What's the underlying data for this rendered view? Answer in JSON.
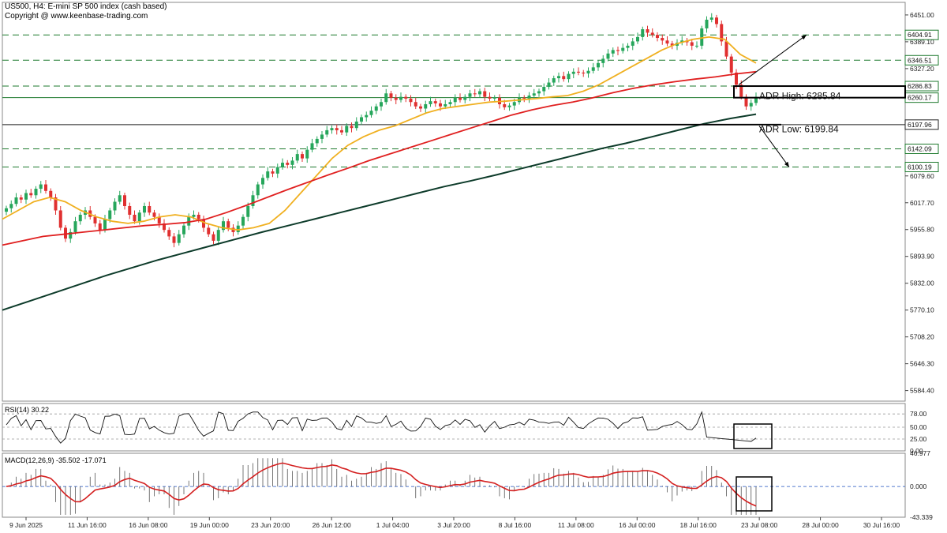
{
  "header": {
    "title": "US500, H4:  E-mini SP 500 index (cash based)",
    "copyright": "Copyright @ www.keenbase-trading.com"
  },
  "indicators": {
    "rsi_label": "RSI(14) 30.22",
    "macd_label": "MACD(12,26,9) -35.502 -17.071"
  },
  "chart_data": {
    "type": "line",
    "price_axis": {
      "ticks": [
        "6451.00",
        "6389.10",
        "6327.20",
        "6265.30",
        "6203.40",
        "6141.50",
        "6079.60",
        "6017.70",
        "5955.80",
        "5893.90",
        "5832.00",
        "5770.10",
        "5708.20",
        "5646.30",
        "5584.40"
      ],
      "range": [
        5560,
        6480
      ]
    },
    "x_labels": [
      "9 Jun 2025",
      "11 Jun 16:00",
      "16 Jun 08:00",
      "19 Jun 00:00",
      "23 Jun 20:00",
      "26 Jun 12:00",
      "1 Jul 04:00",
      "3 Jul 20:00",
      "8 Jul 16:00",
      "11 Jul 08:00",
      "16 Jul 00:00",
      "18 Jul 16:00",
      "23 Jul 08:00",
      "28 Jul 00:00",
      "30 Jul 16:00"
    ],
    "levels": [
      {
        "value": 6404.91,
        "label": "6404.91",
        "style": "dashed-green"
      },
      {
        "value": 6346.51,
        "label": "6346.51",
        "style": "dashed-green"
      },
      {
        "value": 6286.83,
        "label": "6286.83",
        "style": "dashed-green"
      },
      {
        "value": 6260.17,
        "label": "6260.17",
        "style": "solid-green"
      },
      {
        "value": 6197.96,
        "label": "6197.96",
        "style": "solid-black"
      },
      {
        "value": 6142.09,
        "label": "6142.09",
        "style": "dashed-green"
      },
      {
        "value": 6100.19,
        "label": "6100.19",
        "style": "dashed-green"
      }
    ],
    "annotations": {
      "adr_high": "ADR High: 6285.84",
      "adr_low": "ADR Low: 6199.84"
    },
    "series": [
      {
        "kind": "candles",
        "color_up": "#26a65b",
        "color_down": "#e03030",
        "close": [
          6005,
          6015,
          6030,
          6025,
          6040,
          6035,
          6050,
          6060,
          6045,
          6030,
          6000,
          5960,
          5935,
          5950,
          5975,
          5990,
          6000,
          5985,
          5970,
          5955,
          5980,
          6000,
          6020,
          6035,
          6010,
          5990,
          5975,
          5995,
          6010,
          5995,
          5985,
          5970,
          5955,
          5940,
          5925,
          5945,
          5965,
          5985,
          5990,
          5980,
          5960,
          5945,
          5930,
          5955,
          5975,
          5960,
          5950,
          5965,
          5985,
          6010,
          6035,
          6060,
          6075,
          6090,
          6085,
          6100,
          6110,
          6105,
          6115,
          6130,
          6120,
          6140,
          6155,
          6165,
          6175,
          6185,
          6190,
          6185,
          6180,
          6195,
          6190,
          6205,
          6215,
          6220,
          6230,
          6240,
          6250,
          6270,
          6260,
          6255,
          6262,
          6258,
          6250,
          6240,
          6235,
          6245,
          6252,
          6247,
          6240,
          6245,
          6250,
          6260,
          6255,
          6262,
          6270,
          6268,
          6275,
          6262,
          6258,
          6260,
          6245,
          6238,
          6242,
          6250,
          6260,
          6258,
          6265,
          6270,
          6275,
          6285,
          6295,
          6305,
          6310,
          6303,
          6315,
          6320,
          6318,
          6316,
          6322,
          6330,
          6340,
          6350,
          6362,
          6370,
          6368,
          6375,
          6380,
          6390,
          6400,
          6418,
          6410,
          6405,
          6398,
          6392,
          6385,
          6380,
          6387,
          6392,
          6388,
          6380,
          6380,
          6420,
          6440,
          6445,
          6430,
          6390,
          6355,
          6318,
          6290,
          6262,
          6240,
          6248,
          6262
        ]
      },
      {
        "kind": "ma",
        "name": "",
        "color": "#f0b020",
        "values": [
          5980,
          6000,
          6020,
          6030,
          6020,
          6000,
          5985,
          5975,
          5970,
          5975,
          5985,
          5990,
          5985,
          5970,
          5960,
          5955,
          5960,
          5970,
          6000,
          6040,
          6080,
          6120,
          6150,
          6170,
          6185,
          6195,
          6210,
          6225,
          6235,
          6240,
          6245,
          6250,
          6252,
          6255,
          6258,
          6262,
          6265,
          6275,
          6290,
          6310,
          6330,
          6350,
          6370,
          6385,
          6395,
          6400,
          6395,
          6360,
          6340
        ]
      },
      {
        "kind": "ma",
        "name": "",
        "color": "#e02020",
        "values": [
          5920,
          5930,
          5940,
          5945,
          5950,
          5955,
          5960,
          5965,
          5968,
          5972,
          5980,
          5995,
          6012,
          6030,
          6048,
          6065,
          6082,
          6098,
          6115,
          6130,
          6145,
          6160,
          6175,
          6190,
          6205,
          6220,
          6232,
          6242,
          6250,
          6260,
          6272,
          6282,
          6290,
          6297,
          6303,
          6308,
          6315,
          6320
        ]
      },
      {
        "kind": "ma",
        "name": "",
        "color": "#0d3b2a",
        "values": [
          5770,
          5790,
          5810,
          5830,
          5850,
          5868,
          5886,
          5902,
          5918,
          5934,
          5950,
          5965,
          5980,
          5995,
          6010,
          6025,
          6040,
          6055,
          6068,
          6082,
          6097,
          6112,
          6127,
          6142,
          6155,
          6170,
          6185,
          6200,
          6212,
          6222
        ]
      }
    ],
    "rsi": {
      "levels": [
        78.0,
        50.0,
        25.0,
        0.0
      ],
      "tick_labels": [
        "78.00",
        "50.00",
        "25.00",
        "0.00"
      ]
    },
    "macd": {
      "tick_labels": [
        "46.977",
        "0.000",
        "-43.339"
      ],
      "range": [
        -43.339,
        46.977
      ]
    }
  }
}
